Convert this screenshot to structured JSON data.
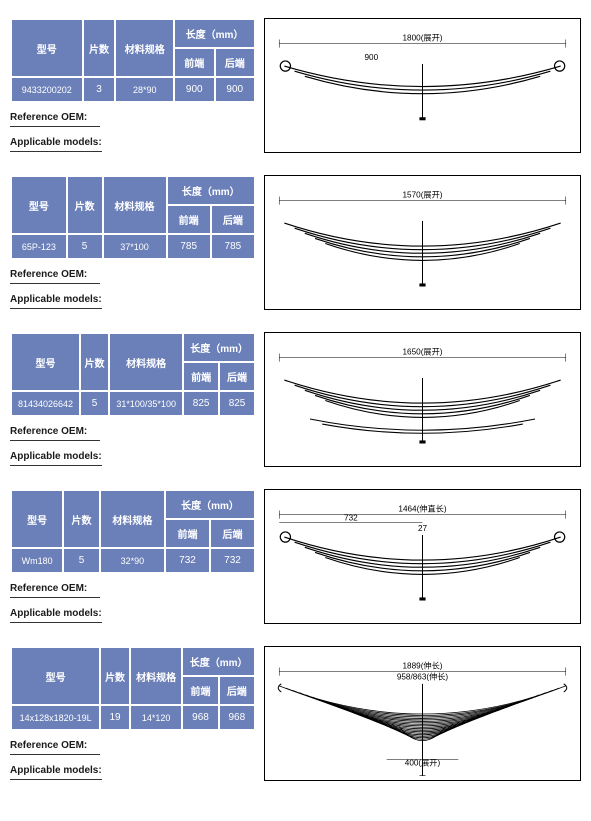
{
  "headers": {
    "model": "型号",
    "pieces": "片数",
    "material": "材料规格",
    "length": "长度（mm）",
    "front": "前端",
    "rear": "后端"
  },
  "labels": {
    "reference_oem": "Reference OEM:",
    "applicable_models": "Applicable models:"
  },
  "colors": {
    "header_bg": "#6b7fb8",
    "header_text": "#ffffff",
    "border": "#000000",
    "page_bg": "#ffffff"
  },
  "products": [
    {
      "model": "9433200202",
      "pieces": "3",
      "material": "28*90",
      "front": "900",
      "rear": "900",
      "diagram": {
        "type": "parabolic",
        "leaves": 3,
        "top_label": "1800(展开)",
        "inner_label": "900"
      }
    },
    {
      "model": "65P-123",
      "pieces": "5",
      "material": "37*100",
      "front": "785",
      "rear": "785",
      "diagram": {
        "type": "multi",
        "leaves": 5,
        "top_label": "1570(展开)"
      }
    },
    {
      "model": "81434026642",
      "pieces": "5",
      "material": "31*100/35*100",
      "front": "825",
      "rear": "825",
      "diagram": {
        "type": "multi-split",
        "leaves": 5,
        "top_label": "1650(展开)"
      }
    },
    {
      "model": "Wm180",
      "pieces": "5",
      "material": "32*90",
      "front": "732",
      "rear": "732",
      "diagram": {
        "type": "multi-eye",
        "leaves": 5,
        "top_label": "1464(伸直长)",
        "half_label": "732",
        "center_label": "27"
      }
    },
    {
      "model": "14x128x1820-19L",
      "pieces": "19",
      "material": "14*120",
      "front": "968",
      "rear": "968",
      "diagram": {
        "type": "heavy",
        "leaves": 19,
        "top_label": "1889(伸长)",
        "sub_label": "958/863(伸长)",
        "bottom_label": "400(展开)"
      }
    }
  ]
}
